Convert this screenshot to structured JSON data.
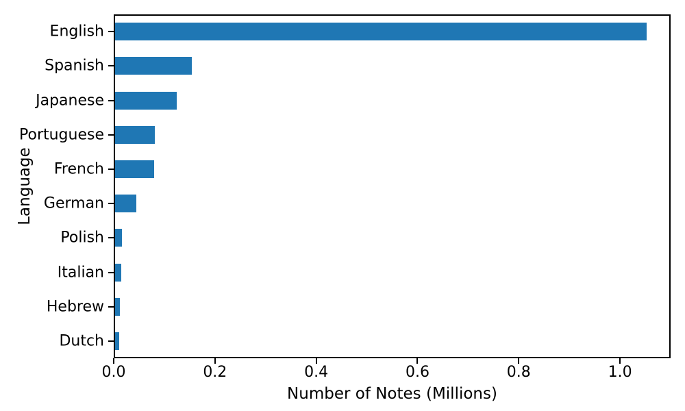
{
  "chart_data": {
    "type": "bar",
    "orientation": "horizontal",
    "title": "",
    "xlabel": "Number of Notes (Millions)",
    "ylabel": "Language",
    "categories": [
      "English",
      "Spanish",
      "Japanese",
      "Portuguese",
      "French",
      "German",
      "Polish",
      "Italian",
      "Hebrew",
      "Dutch"
    ],
    "values": [
      1.05,
      0.152,
      0.122,
      0.078,
      0.077,
      0.042,
      0.013,
      0.012,
      0.009,
      0.008
    ],
    "xlim": [
      0,
      1.1
    ],
    "xticks": [
      0.0,
      0.2,
      0.4,
      0.6,
      0.8,
      1.0
    ],
    "xtick_labels": [
      "0.0",
      "0.2",
      "0.4",
      "0.6",
      "0.8",
      "1.0"
    ],
    "grid": false,
    "legend": null,
    "bar_color": "#1f77b4",
    "text_color": "#000000",
    "background_color": "#ffffff"
  }
}
